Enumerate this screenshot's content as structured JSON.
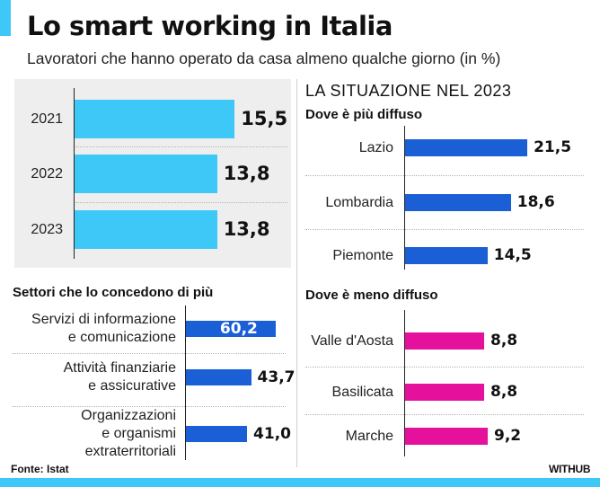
{
  "title": "Lo smart working in Italia",
  "subtitle": "Lavoratori che hanno operato da casa almeno qualche giorno (in %)",
  "colors": {
    "accent": "#3ec8f8",
    "years_bar": "#3ec8f8",
    "blue_bar": "#1a5fd6",
    "pink_bar": "#e5119c",
    "panel": "#eeeeee"
  },
  "right_heading": "LA SITUAZIONE NEL 2023",
  "source": "Fonte: Istat",
  "brand": "WITHUB",
  "chart_data": [
    {
      "type": "bar",
      "orientation": "horizontal",
      "title": "",
      "categories": [
        "2021",
        "2022",
        "2023"
      ],
      "values": [
        15.5,
        13.8,
        13.8
      ],
      "value_labels": [
        "15,5",
        "13,8",
        "13,8"
      ]
    },
    {
      "type": "bar",
      "orientation": "horizontal",
      "title": "Settori che lo concedono di più",
      "categories": [
        [
          "Servizi di informazione",
          "e comunicazione"
        ],
        [
          "Attività finanziarie",
          "e assicurative"
        ],
        [
          "Organizzazioni",
          "e organismi",
          "extraterritoriali"
        ]
      ],
      "values": [
        60.2,
        43.7,
        41.0
      ],
      "value_labels": [
        "60,2",
        "43,7",
        "41,0"
      ]
    },
    {
      "type": "bar",
      "orientation": "horizontal",
      "title": "Dove è più diffuso",
      "categories": [
        "Lazio",
        "Lombardia",
        "Piemonte"
      ],
      "values": [
        21.5,
        18.6,
        14.5
      ],
      "value_labels": [
        "21,5",
        "18,6",
        "14,5"
      ]
    },
    {
      "type": "bar",
      "orientation": "horizontal",
      "title": "Dove è meno diffuso",
      "categories": [
        "Valle d'Aosta",
        "Basilicata",
        "Marche"
      ],
      "values": [
        8.8,
        8.8,
        9.2
      ],
      "value_labels": [
        "8,8",
        "8,8",
        "9,2"
      ]
    }
  ]
}
